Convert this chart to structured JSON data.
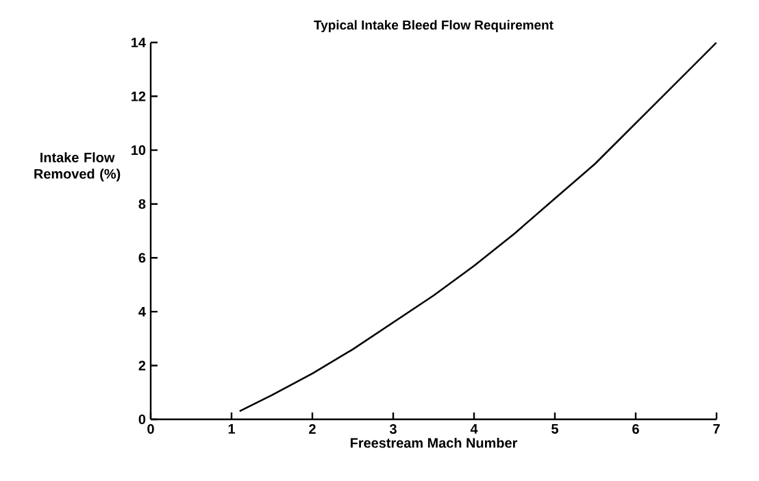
{
  "chart_data": {
    "type": "line",
    "title": "Typical Intake Bleed Flow Requirement",
    "xlabel": "Freestream Mach Number",
    "ylabel": "Intake Flow Removed (%)",
    "x": [
      1.1,
      1.5,
      2,
      2.5,
      3,
      3.5,
      4,
      4.5,
      5,
      5.5,
      6,
      6.5,
      7
    ],
    "series": [
      {
        "color": "#000000",
        "values": [
          0.3,
          0.9,
          1.7,
          2.6,
          3.6,
          4.6,
          5.7,
          6.9,
          8.2,
          9.5,
          11.0,
          12.5,
          14.0
        ]
      }
    ],
    "xlim": [
      0,
      7
    ],
    "ylim": [
      0,
      14
    ],
    "xticks": [
      0,
      1,
      2,
      3,
      4,
      5,
      6,
      7
    ],
    "yticks": [
      0,
      2,
      4,
      6,
      8,
      10,
      12,
      14
    ],
    "grid": false,
    "marker": "none",
    "line_style": "solid"
  }
}
